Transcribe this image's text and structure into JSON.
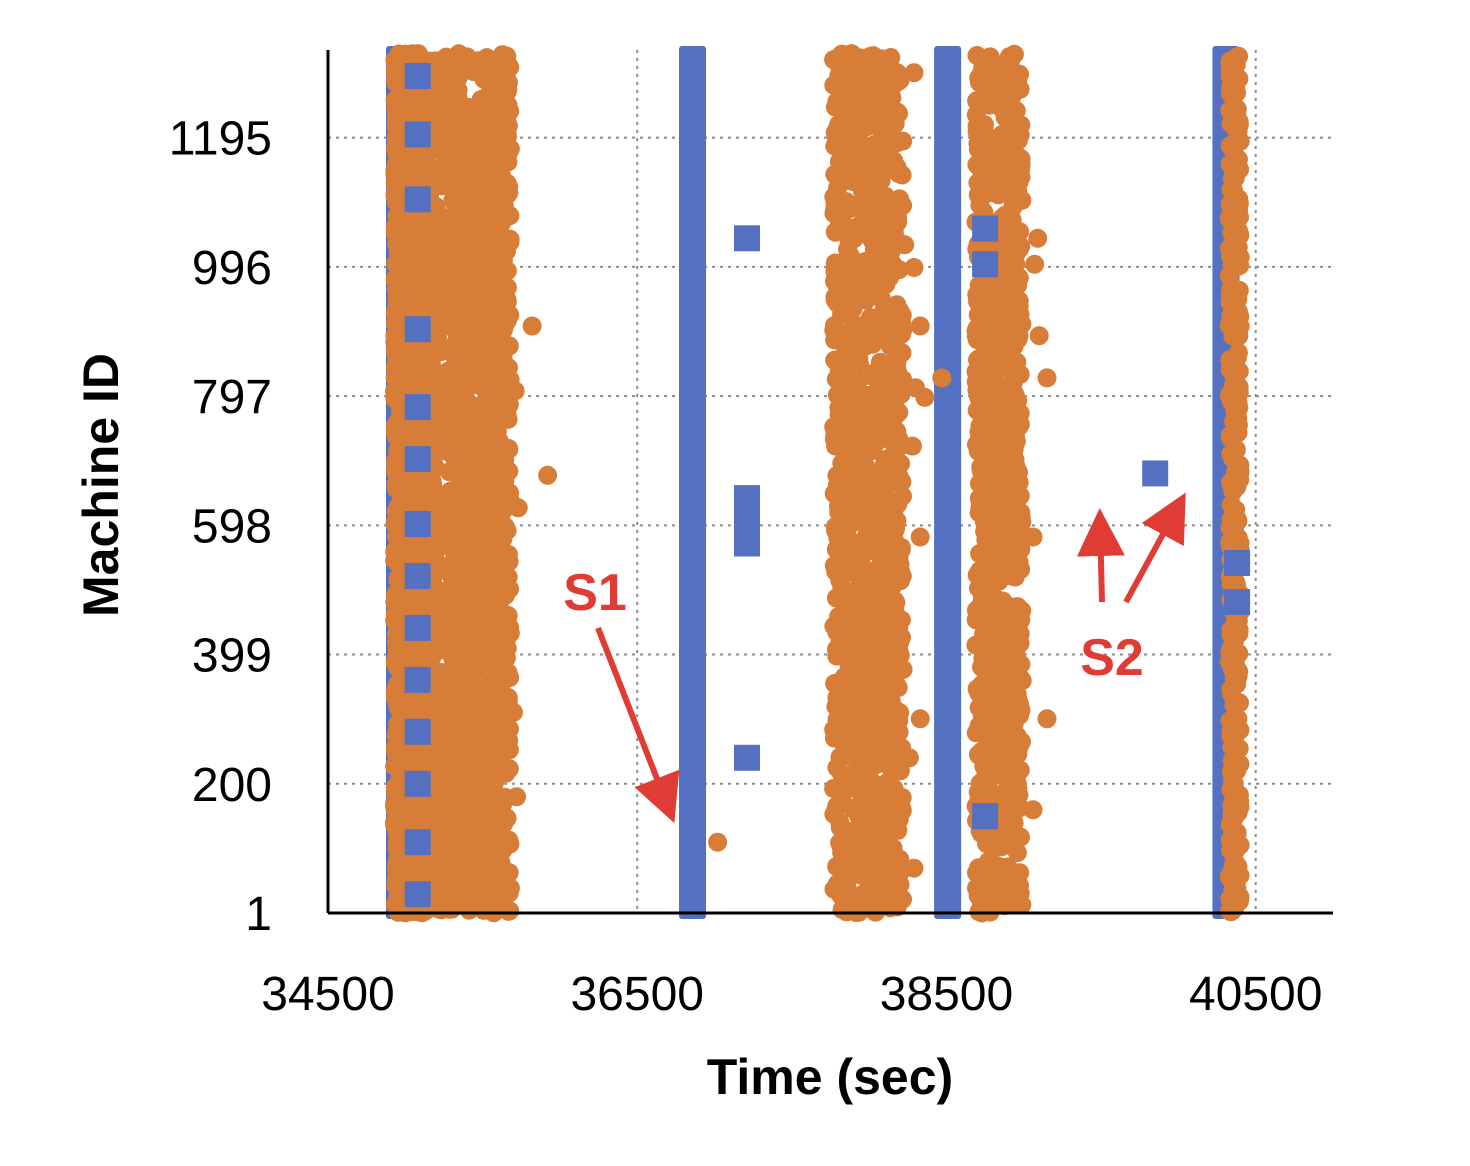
{
  "chart_data": {
    "type": "scatter",
    "xlabel": "Time (sec)",
    "ylabel": "Machine ID",
    "xlim": [
      34500,
      41000
    ],
    "ylim": [
      1,
      1330
    ],
    "x_ticks": [
      {
        "value": 34500,
        "label": "34500"
      },
      {
        "value": 36500,
        "label": "36500"
      },
      {
        "value": 38500,
        "label": "38500"
      },
      {
        "value": 40500,
        "label": "40500"
      }
    ],
    "y_ticks": [
      {
        "value": 1,
        "label": "1"
      },
      {
        "value": 200,
        "label": "200"
      },
      {
        "value": 399,
        "label": "399"
      },
      {
        "value": 598,
        "label": "598"
      },
      {
        "value": 797,
        "label": "797"
      },
      {
        "value": 996,
        "label": "996"
      },
      {
        "value": 1195,
        "label": "1195"
      }
    ],
    "grid": "dotted",
    "legend": "none",
    "series": [
      {
        "marker": "square",
        "color": "#5470C1",
        "bands": [
          {
            "x_start": 34875,
            "x_end": 35050,
            "y_start": 1,
            "y_end": 1330
          },
          {
            "x_start": 36770,
            "x_end": 36945,
            "y_start": 1,
            "y_end": 1330
          },
          {
            "x_start": 38420,
            "x_end": 38595,
            "y_start": 1,
            "y_end": 1330
          },
          {
            "x_start": 40220,
            "x_end": 40395,
            "y_start": 1,
            "y_end": 1330
          }
        ],
        "points": [
          {
            "x": 35080,
            "y": 1290
          },
          {
            "x": 35080,
            "y": 1200
          },
          {
            "x": 35080,
            "y": 1100
          },
          {
            "x": 35080,
            "y": 900
          },
          {
            "x": 35080,
            "y": 780
          },
          {
            "x": 35080,
            "y": 700
          },
          {
            "x": 35080,
            "y": 600
          },
          {
            "x": 35080,
            "y": 520
          },
          {
            "x": 35080,
            "y": 440
          },
          {
            "x": 35080,
            "y": 360
          },
          {
            "x": 35080,
            "y": 280
          },
          {
            "x": 35080,
            "y": 200
          },
          {
            "x": 35080,
            "y": 110
          },
          {
            "x": 35080,
            "y": 30
          },
          {
            "x": 37210,
            "y": 1040
          },
          {
            "x": 37210,
            "y": 640
          },
          {
            "x": 37210,
            "y": 615
          },
          {
            "x": 37210,
            "y": 590
          },
          {
            "x": 37210,
            "y": 570
          },
          {
            "x": 37210,
            "y": 240
          },
          {
            "x": 38750,
            "y": 1055
          },
          {
            "x": 38750,
            "y": 1000
          },
          {
            "x": 38750,
            "y": 150
          },
          {
            "x": 39850,
            "y": 678
          },
          {
            "x": 40380,
            "y": 540
          },
          {
            "x": 40380,
            "y": 480
          }
        ]
      },
      {
        "marker": "circle",
        "color": "#D87D38",
        "clusters": [
          {
            "x_min": 34930,
            "x_max": 35130,
            "y_min": 1,
            "y_max": 1325,
            "count": 1400
          },
          {
            "x_min": 35130,
            "x_max": 35340,
            "y_min": 1,
            "y_max": 1325,
            "count": 520
          },
          {
            "x_min": 35330,
            "x_max": 35680,
            "y_min": 1,
            "y_max": 1325,
            "count": 1050
          },
          {
            "x_min": 37770,
            "x_max": 38220,
            "y_min": 1,
            "y_max": 1325,
            "count": 1050
          },
          {
            "x_min": 38690,
            "x_max": 38990,
            "y_min": 1,
            "y_max": 1325,
            "count": 800
          },
          {
            "x_min": 40330,
            "x_max": 40400,
            "y_min": 1,
            "y_max": 1325,
            "count": 320
          }
        ],
        "points": [
          {
            "x": 35820,
            "y": 905
          },
          {
            "x": 35710,
            "y": 805
          },
          {
            "x": 35920,
            "y": 675
          },
          {
            "x": 35730,
            "y": 625
          },
          {
            "x": 35700,
            "y": 310
          },
          {
            "x": 35720,
            "y": 180
          },
          {
            "x": 35640,
            "y": 1090
          },
          {
            "x": 35660,
            "y": 990
          },
          {
            "x": 37020,
            "y": 110
          },
          {
            "x": 38290,
            "y": 1295
          },
          {
            "x": 38230,
            "y": 1030
          },
          {
            "x": 38290,
            "y": 995
          },
          {
            "x": 38330,
            "y": 905
          },
          {
            "x": 38300,
            "y": 810
          },
          {
            "x": 38360,
            "y": 795
          },
          {
            "x": 38280,
            "y": 720
          },
          {
            "x": 38330,
            "y": 580
          },
          {
            "x": 38330,
            "y": 300
          },
          {
            "x": 38260,
            "y": 240
          },
          {
            "x": 38290,
            "y": 70
          },
          {
            "x": 38470,
            "y": 825
          },
          {
            "x": 39090,
            "y": 1040
          },
          {
            "x": 39070,
            "y": 1000
          },
          {
            "x": 39100,
            "y": 890
          },
          {
            "x": 39150,
            "y": 825
          },
          {
            "x": 39060,
            "y": 580
          },
          {
            "x": 39150,
            "y": 300
          },
          {
            "x": 39060,
            "y": 160
          }
        ]
      }
    ],
    "annotations": [
      {
        "label": "S1",
        "color": "#E03C36"
      },
      {
        "label": "S2",
        "color": "#E03C36"
      }
    ]
  }
}
